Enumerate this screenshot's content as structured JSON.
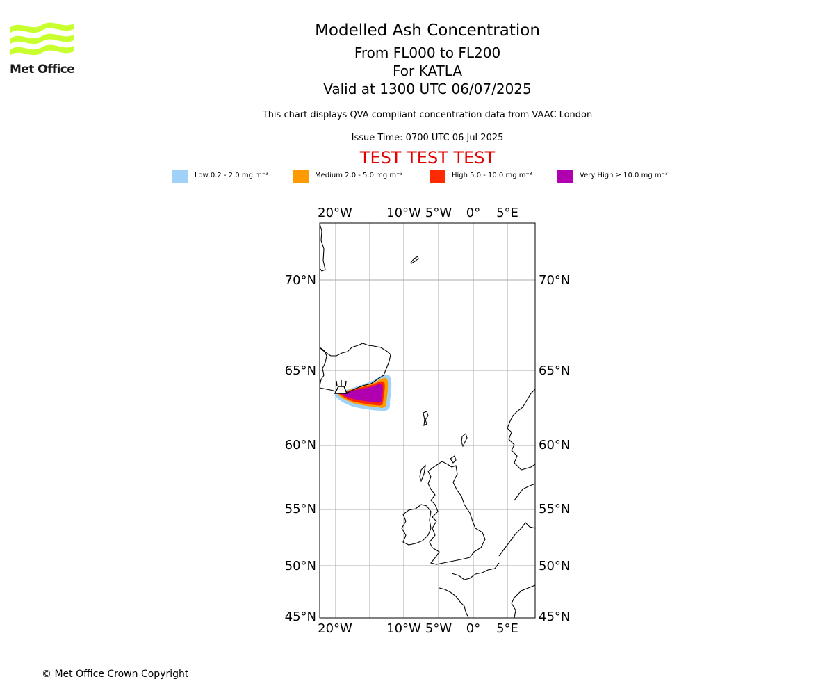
{
  "logo": {
    "text": "Met Office",
    "colors": {
      "waves": "#c8ff2e",
      "text": "#1a1a1a"
    }
  },
  "titles": {
    "line1": "Modelled Ash Concentration",
    "line2": "From FL000 to FL200",
    "line3": "For KATLA",
    "line4": "Valid at 1300 UTC 06/07/2025"
  },
  "note": "This chart displays QVA compliant concentration data from VAAC London",
  "issue_time": "Issue Time: 0700 UTC 06 Jul 2025",
  "test_banner": "TEST TEST TEST",
  "legend": [
    {
      "label": "Low 0.2 - 2.0 mg m⁻³",
      "color": "#a0d2f8"
    },
    {
      "label": "Medium 2.0 - 5.0 mg m⁻³",
      "color": "#ff9a00"
    },
    {
      "label": "High 5.0 - 10.0 mg m⁻³",
      "color": "#ff2a00"
    },
    {
      "label": "Very High  ≥  10.0 mg m⁻³",
      "color": "#b000b0"
    }
  ],
  "map": {
    "lon_ticks": [
      "20°W",
      "10°W",
      "5°W",
      "0°",
      "5°E"
    ],
    "lat_ticks": [
      "70°N",
      "65°N",
      "60°N",
      "55°N",
      "50°N",
      "45°N"
    ],
    "gridline_color": "#aaaaaa",
    "volcano": "KATLA"
  },
  "copyright": "© Met Office Crown Copyright"
}
